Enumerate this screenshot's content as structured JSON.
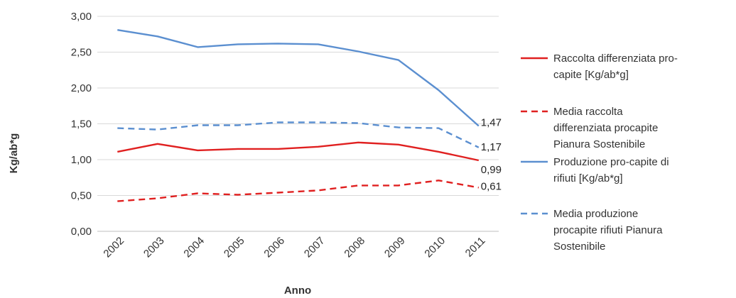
{
  "chart_data": {
    "type": "line",
    "title": "",
    "xlabel": "Anno",
    "ylabel": "Kg/ab*g",
    "ylim": [
      0,
      3
    ],
    "yticks": [
      "0,00",
      "0,50",
      "1,00",
      "1,50",
      "2,00",
      "2,50",
      "3,00"
    ],
    "categories": [
      "2002",
      "2003",
      "2004",
      "2005",
      "2006",
      "2007",
      "2008",
      "2009",
      "2010",
      "2011"
    ],
    "grid": "horizontal",
    "legend_position": "right",
    "series": [
      {
        "name": "Raccolta differenziata pro-capite [Kg/ab*g]",
        "legend_lines": [
          "Raccolta differenziata pro-",
          "capite [Kg/ab*g]"
        ],
        "color": "#e02020",
        "dash": "solid",
        "values": [
          1.11,
          1.22,
          1.13,
          1.15,
          1.15,
          1.18,
          1.24,
          1.21,
          1.11,
          0.99
        ],
        "end_label": "0,99"
      },
      {
        "name": "Media raccolta differenziata procapite Pianura Sostenibile",
        "legend_lines": [
          "Media raccolta",
          "differenziata procapite",
          "Pianura Sostenibile"
        ],
        "color": "#e02020",
        "dash": "dashed",
        "values": [
          0.42,
          0.46,
          0.53,
          0.51,
          0.54,
          0.57,
          0.64,
          0.64,
          0.71,
          0.61
        ],
        "end_label": "0,61"
      },
      {
        "name": "Produzione pro-capite di rifiuti [Kg/ab*g]",
        "legend_lines": [
          "Produzione pro-capite di",
          "rifiuti [Kg/ab*g]"
        ],
        "color": "#5b8fd0",
        "dash": "solid",
        "values": [
          2.81,
          2.72,
          2.57,
          2.61,
          2.62,
          2.61,
          2.51,
          2.39,
          1.97,
          1.47
        ],
        "end_label": "1,47"
      },
      {
        "name": "Media produzione procapite rifiuti Pianura Sostenibile",
        "legend_lines": [
          "Media produzione",
          "procapite rifiuti Pianura",
          "Sostenibile"
        ],
        "color": "#5b8fd0",
        "dash": "dashed",
        "values": [
          1.44,
          1.42,
          1.48,
          1.48,
          1.52,
          1.52,
          1.51,
          1.45,
          1.44,
          1.17
        ],
        "end_label": "1,17"
      }
    ]
  }
}
